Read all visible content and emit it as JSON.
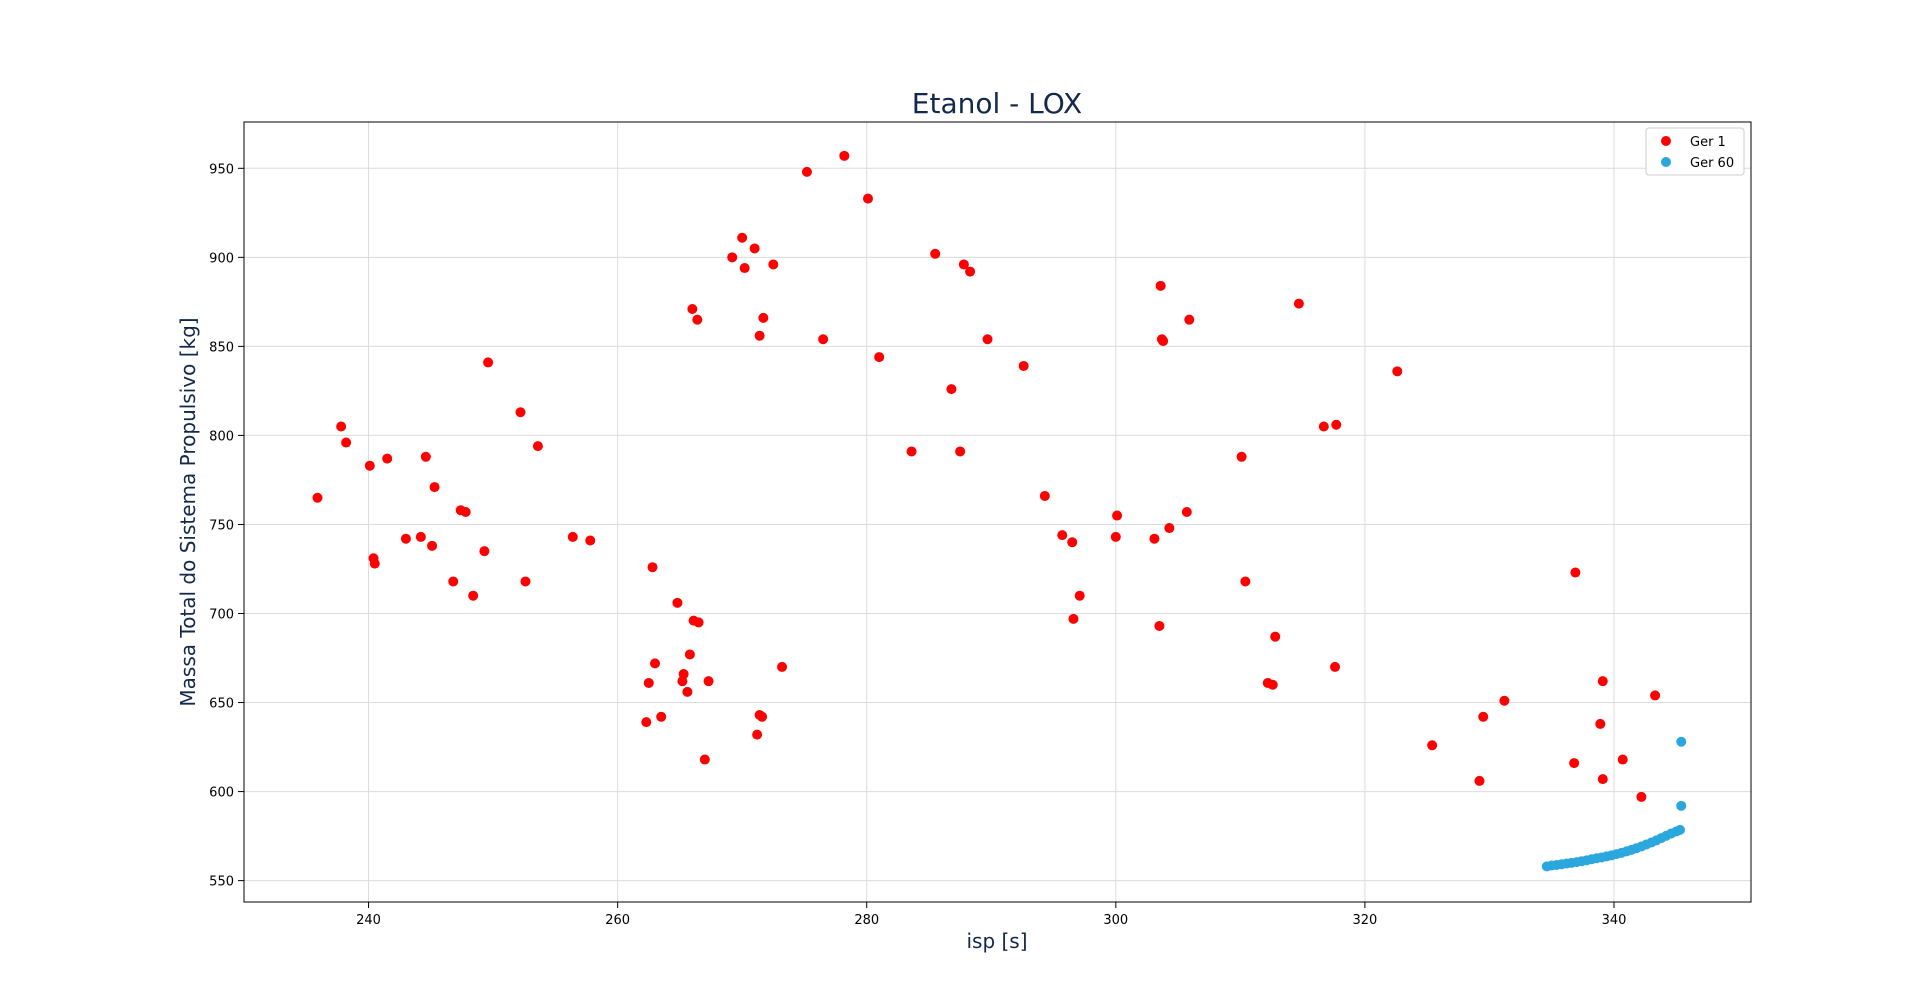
{
  "chart_data": {
    "type": "scatter",
    "title": "Etanol - LOX",
    "xlabel": "isp [s]",
    "ylabel": "Massa Total do Sistema Propulsivo [kg]",
    "xlim": [
      230,
      351
    ],
    "ylim": [
      538,
      976
    ],
    "x_ticks": [
      240,
      260,
      280,
      300,
      320,
      340
    ],
    "y_ticks": [
      550,
      600,
      650,
      700,
      750,
      800,
      850,
      900,
      950
    ],
    "grid": true,
    "legend_position": "upper right",
    "series": [
      {
        "name": "Ger 1",
        "color": "#ff0000",
        "points": [
          [
            235.9,
            765
          ],
          [
            237.8,
            805
          ],
          [
            238.2,
            796
          ],
          [
            240.1,
            783
          ],
          [
            240.4,
            731
          ],
          [
            240.5,
            728
          ],
          [
            241.5,
            787
          ],
          [
            243.0,
            742
          ],
          [
            244.2,
            743
          ],
          [
            244.6,
            788
          ],
          [
            245.1,
            738
          ],
          [
            245.3,
            771
          ],
          [
            246.8,
            718
          ],
          [
            247.4,
            758
          ],
          [
            247.8,
            757
          ],
          [
            248.4,
            710
          ],
          [
            249.3,
            735
          ],
          [
            249.6,
            841
          ],
          [
            252.2,
            813
          ],
          [
            252.6,
            718
          ],
          [
            253.6,
            794
          ],
          [
            256.4,
            743
          ],
          [
            257.8,
            741
          ],
          [
            262.3,
            639
          ],
          [
            262.5,
            661
          ],
          [
            262.8,
            726
          ],
          [
            263.0,
            672
          ],
          [
            263.5,
            642
          ],
          [
            264.8,
            706
          ],
          [
            265.2,
            662
          ],
          [
            265.3,
            666
          ],
          [
            265.6,
            656
          ],
          [
            265.8,
            677
          ],
          [
            266.0,
            871
          ],
          [
            266.1,
            696
          ],
          [
            266.4,
            865
          ],
          [
            266.5,
            695
          ],
          [
            267.0,
            618
          ],
          [
            267.3,
            662
          ],
          [
            269.2,
            900
          ],
          [
            270.0,
            911
          ],
          [
            270.2,
            894
          ],
          [
            271.0,
            905
          ],
          [
            271.2,
            632
          ],
          [
            271.4,
            643
          ],
          [
            271.4,
            856
          ],
          [
            271.6,
            642
          ],
          [
            271.7,
            866
          ],
          [
            272.5,
            896
          ],
          [
            273.2,
            670
          ],
          [
            275.2,
            948
          ],
          [
            276.5,
            854
          ],
          [
            278.2,
            957
          ],
          [
            280.1,
            933
          ],
          [
            281.0,
            844
          ],
          [
            283.6,
            791
          ],
          [
            285.5,
            902
          ],
          [
            286.8,
            826
          ],
          [
            287.5,
            791
          ],
          [
            287.8,
            896
          ],
          [
            288.3,
            892
          ],
          [
            289.7,
            854
          ],
          [
            292.6,
            839
          ],
          [
            294.3,
            766
          ],
          [
            295.7,
            744
          ],
          [
            296.5,
            740
          ],
          [
            296.6,
            697
          ],
          [
            297.1,
            710
          ],
          [
            300.0,
            743
          ],
          [
            300.1,
            755
          ],
          [
            303.1,
            742
          ],
          [
            303.5,
            693
          ],
          [
            303.6,
            884
          ],
          [
            303.7,
            854
          ],
          [
            303.8,
            853
          ],
          [
            304.3,
            748
          ],
          [
            305.7,
            757
          ],
          [
            305.9,
            865
          ],
          [
            310.1,
            788
          ],
          [
            310.4,
            718
          ],
          [
            312.2,
            661
          ],
          [
            312.6,
            660
          ],
          [
            312.8,
            687
          ],
          [
            314.7,
            874
          ],
          [
            316.7,
            805
          ],
          [
            317.6,
            670
          ],
          [
            317.7,
            806
          ],
          [
            322.6,
            836
          ],
          [
            325.4,
            626
          ],
          [
            329.2,
            606
          ],
          [
            329.5,
            642
          ],
          [
            331.2,
            651
          ],
          [
            336.8,
            616
          ],
          [
            336.9,
            723
          ],
          [
            338.9,
            638
          ],
          [
            339.1,
            607
          ],
          [
            339.1,
            662
          ],
          [
            340.7,
            618
          ],
          [
            342.2,
            597
          ],
          [
            343.3,
            654
          ]
        ]
      },
      {
        "name": "Ger 60",
        "color": "#2aa7dc",
        "points": [
          [
            334.6,
            558
          ],
          [
            335.0,
            558.5
          ],
          [
            335.4,
            558.8
          ],
          [
            335.8,
            559.2
          ],
          [
            336.2,
            559.6
          ],
          [
            336.6,
            560
          ],
          [
            337.0,
            560.4
          ],
          [
            337.4,
            560.9
          ],
          [
            337.8,
            561.4
          ],
          [
            338.2,
            562
          ],
          [
            338.6,
            562.6
          ],
          [
            339.0,
            563
          ],
          [
            339.4,
            563.6
          ],
          [
            339.8,
            564.2
          ],
          [
            340.2,
            564.9
          ],
          [
            340.6,
            565.6
          ],
          [
            341.0,
            566.4
          ],
          [
            341.4,
            567.3
          ],
          [
            341.8,
            568.2
          ],
          [
            342.2,
            569.2
          ],
          [
            342.6,
            570.3
          ],
          [
            343.0,
            571.4
          ],
          [
            343.4,
            572.6
          ],
          [
            343.8,
            573.9
          ],
          [
            344.2,
            575.2
          ],
          [
            344.6,
            576.5
          ],
          [
            345.0,
            577.6
          ],
          [
            345.3,
            578.5
          ],
          [
            345.4,
            592
          ],
          [
            345.4,
            628
          ]
        ]
      }
    ]
  }
}
